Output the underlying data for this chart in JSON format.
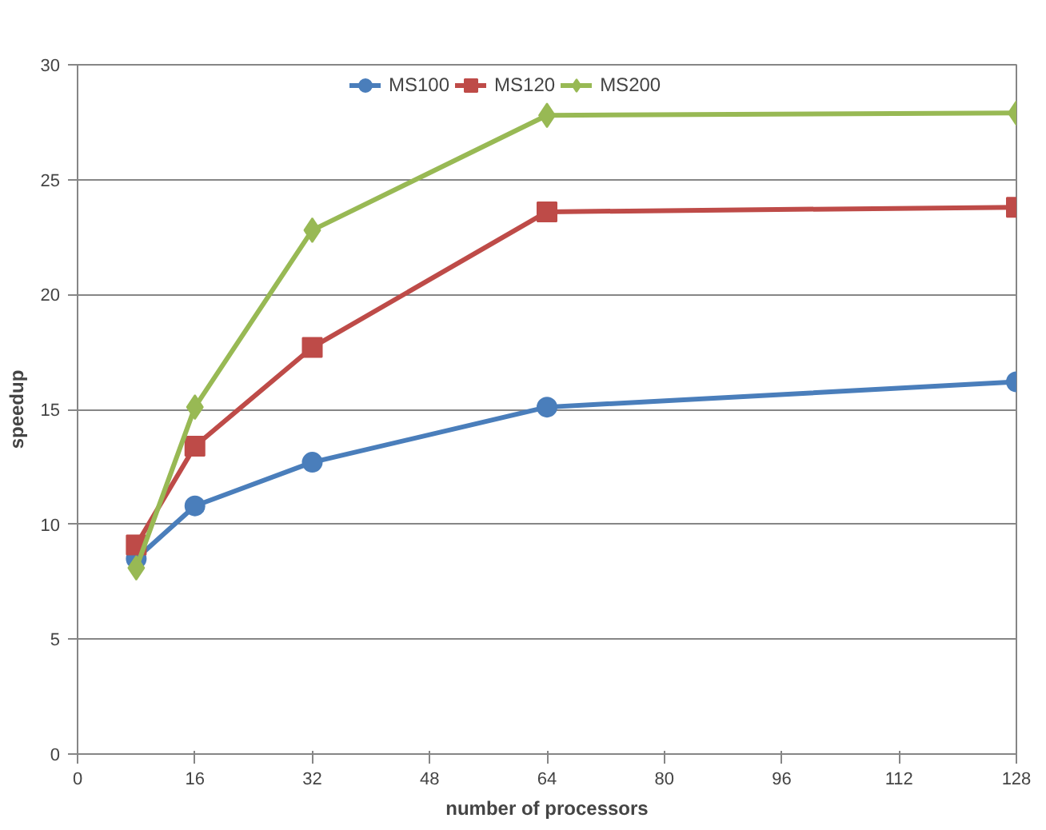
{
  "chart_data": {
    "type": "line",
    "xlabel": "number of processors",
    "ylabel": "speedup",
    "x": [
      8,
      16,
      32,
      64,
      128
    ],
    "series": [
      {
        "name": "MS100",
        "color": "#4a7ebb",
        "marker": "circle",
        "values": [
          8.5,
          10.8,
          12.7,
          15.1,
          16.2
        ]
      },
      {
        "name": "MS120",
        "color": "#be4b48",
        "marker": "square",
        "values": [
          9.1,
          13.4,
          17.7,
          23.6,
          23.8
        ]
      },
      {
        "name": "MS200",
        "color": "#98b954",
        "marker": "diamond",
        "values": [
          8.1,
          15.1,
          22.8,
          27.8,
          27.9
        ]
      }
    ],
    "xlim": [
      0,
      128
    ],
    "xticks": [
      0,
      16,
      32,
      48,
      64,
      80,
      96,
      112,
      128
    ],
    "ylim": [
      0,
      30
    ],
    "yticks": [
      0,
      5,
      10,
      15,
      20,
      25,
      30
    ],
    "grid": "y",
    "legend": "top",
    "line_style": "solid"
  }
}
